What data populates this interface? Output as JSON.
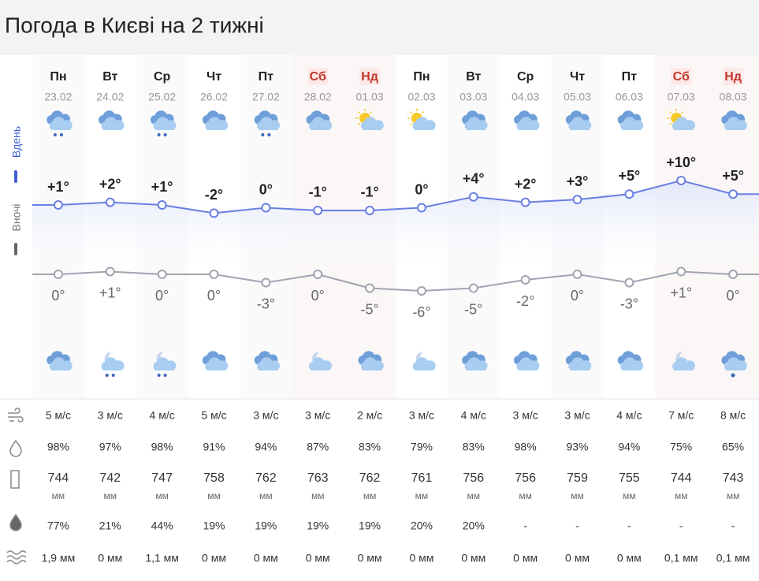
{
  "header": {
    "title": "Погода в Києві на 2 тижні"
  },
  "side_labels": {
    "day": "Вдень",
    "night": "Вночі"
  },
  "days": [
    {
      "weekday": "Пн",
      "date": "23.02",
      "weekend": false,
      "day_temp": {
        "value": 1,
        "label": "+1°"
      },
      "night_temp": {
        "value": 0,
        "label": "0°"
      },
      "wind": "5 м/с",
      "humidity": "98%",
      "pressure": {
        "value": "744",
        "unit": "мм"
      },
      "precip_prob": "77%",
      "precip": "1,9 мм"
    },
    {
      "weekday": "Вт",
      "date": "24.02",
      "weekend": false,
      "day_temp": {
        "value": 2,
        "label": "+2°"
      },
      "night_temp": {
        "value": 1,
        "label": "+1°"
      },
      "wind": "3 м/с",
      "humidity": "97%",
      "pressure": {
        "value": "742",
        "unit": "мм"
      },
      "precip_prob": "21%",
      "precip": "0 мм"
    },
    {
      "weekday": "Ср",
      "date": "25.02",
      "weekend": false,
      "day_temp": {
        "value": 1,
        "label": "+1°"
      },
      "night_temp": {
        "value": 0,
        "label": "0°"
      },
      "wind": "4 м/с",
      "humidity": "98%",
      "pressure": {
        "value": "747",
        "unit": "мм"
      },
      "precip_prob": "44%",
      "precip": "1,1 мм"
    },
    {
      "weekday": "Чт",
      "date": "26.02",
      "weekend": false,
      "day_temp": {
        "value": -2,
        "label": "-2°"
      },
      "night_temp": {
        "value": 0,
        "label": "0°"
      },
      "wind": "5 м/с",
      "humidity": "91%",
      "pressure": {
        "value": "758",
        "unit": "мм"
      },
      "precip_prob": "19%",
      "precip": "0 мм"
    },
    {
      "weekday": "Пт",
      "date": "27.02",
      "weekend": false,
      "day_temp": {
        "value": 0,
        "label": "0°"
      },
      "night_temp": {
        "value": -3,
        "label": "-3°"
      },
      "wind": "3 м/с",
      "humidity": "94%",
      "pressure": {
        "value": "762",
        "unit": "мм"
      },
      "precip_prob": "19%",
      "precip": "0 мм"
    },
    {
      "weekday": "Сб",
      "date": "28.02",
      "weekend": true,
      "day_temp": {
        "value": -1,
        "label": "-1°"
      },
      "night_temp": {
        "value": 0,
        "label": "0°"
      },
      "wind": "3 м/с",
      "humidity": "87%",
      "pressure": {
        "value": "763",
        "unit": "мм"
      },
      "precip_prob": "19%",
      "precip": "0 мм"
    },
    {
      "weekday": "Нд",
      "date": "01.03",
      "weekend": true,
      "day_temp": {
        "value": -1,
        "label": "-1°"
      },
      "night_temp": {
        "value": -5,
        "label": "-5°"
      },
      "wind": "2 м/с",
      "humidity": "83%",
      "pressure": {
        "value": "762",
        "unit": "мм"
      },
      "precip_prob": "19%",
      "precip": "0 мм"
    },
    {
      "weekday": "Пн",
      "date": "02.03",
      "weekend": false,
      "day_temp": {
        "value": 0,
        "label": "0°"
      },
      "night_temp": {
        "value": -6,
        "label": "-6°"
      },
      "wind": "3 м/с",
      "humidity": "79%",
      "pressure": {
        "value": "761",
        "unit": "мм"
      },
      "precip_prob": "20%",
      "precip": "0 мм"
    },
    {
      "weekday": "Вт",
      "date": "03.03",
      "weekend": false,
      "day_temp": {
        "value": 4,
        "label": "+4°"
      },
      "night_temp": {
        "value": -5,
        "label": "-5°"
      },
      "wind": "4 м/с",
      "humidity": "83%",
      "pressure": {
        "value": "756",
        "unit": "мм"
      },
      "precip_prob": "20%",
      "precip": "0 мм"
    },
    {
      "weekday": "Ср",
      "date": "04.03",
      "weekend": false,
      "day_temp": {
        "value": 2,
        "label": "+2°"
      },
      "night_temp": {
        "value": -2,
        "label": "-2°"
      },
      "wind": "3 м/с",
      "humidity": "98%",
      "pressure": {
        "value": "756",
        "unit": "мм"
      },
      "precip_prob": "-",
      "precip": "0 мм"
    },
    {
      "weekday": "Чт",
      "date": "05.03",
      "weekend": false,
      "day_temp": {
        "value": 3,
        "label": "+3°"
      },
      "night_temp": {
        "value": 0,
        "label": "0°"
      },
      "wind": "3 м/с",
      "humidity": "93%",
      "pressure": {
        "value": "759",
        "unit": "мм"
      },
      "precip_prob": "-",
      "precip": "0 мм"
    },
    {
      "weekday": "Пт",
      "date": "06.03",
      "weekend": false,
      "day_temp": {
        "value": 5,
        "label": "+5°"
      },
      "night_temp": {
        "value": -3,
        "label": "-3°"
      },
      "wind": "4 м/с",
      "humidity": "94%",
      "pressure": {
        "value": "755",
        "unit": "мм"
      },
      "precip_prob": "-",
      "precip": "0 мм"
    },
    {
      "weekday": "Сб",
      "date": "07.03",
      "weekend": true,
      "day_temp": {
        "value": 10,
        "label": "+10°"
      },
      "night_temp": {
        "value": 1,
        "label": "+1°"
      },
      "wind": "7 м/с",
      "humidity": "75%",
      "pressure": {
        "value": "744",
        "unit": "мм"
      },
      "precip_prob": "-",
      "precip": "0,1 мм"
    },
    {
      "weekday": "Нд",
      "date": "08.03",
      "weekend": true,
      "day_temp": {
        "value": 5,
        "label": "+5°"
      },
      "night_temp": {
        "value": 0,
        "label": "0°"
      },
      "wind": "8 м/с",
      "humidity": "65%",
      "pressure": {
        "value": "743",
        "unit": "мм"
      },
      "precip_prob": "-",
      "precip": "0,1 мм"
    }
  ]
}
